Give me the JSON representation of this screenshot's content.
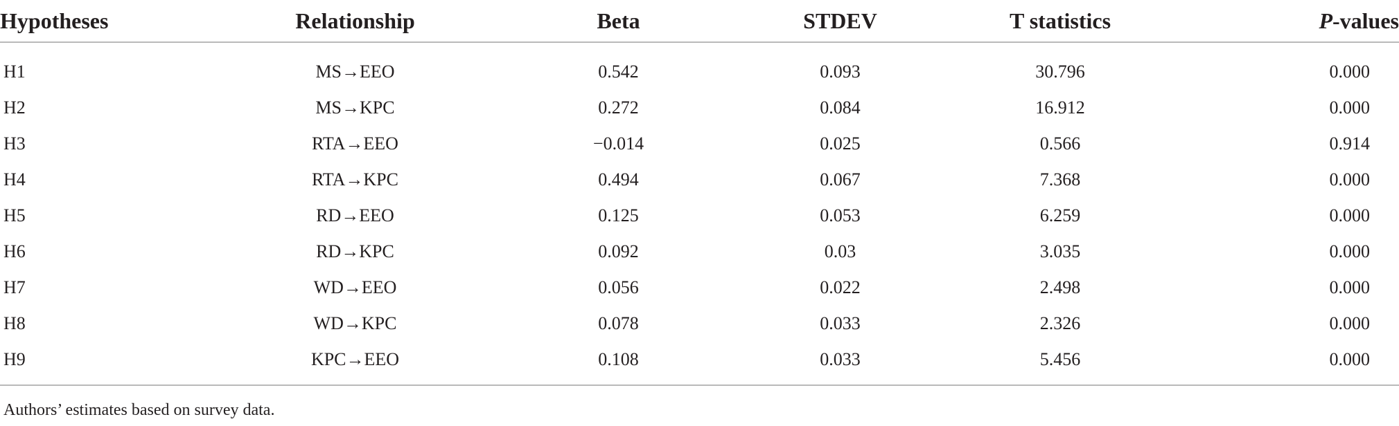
{
  "table": {
    "headers": {
      "hypotheses": "Hypotheses",
      "relationship": "Relationship",
      "beta": "Beta",
      "stdev": "STDEV",
      "t_statistics": "T statistics",
      "p_values_italic": "P",
      "p_values_rest": "-values"
    },
    "rows": [
      {
        "hypothesis": "H1",
        "relationship": "MS→EEO",
        "beta": "0.542",
        "stdev": "0.093",
        "t": "30.796",
        "p": "0.000"
      },
      {
        "hypothesis": "H2",
        "relationship": "MS→KPC",
        "beta": "0.272",
        "stdev": "0.084",
        "t": "16.912",
        "p": "0.000"
      },
      {
        "hypothesis": "H3",
        "relationship": "RTA→EEO",
        "beta": "−0.014",
        "stdev": "0.025",
        "t": "0.566",
        "p": "0.914"
      },
      {
        "hypothesis": "H4",
        "relationship": "RTA→KPC",
        "beta": "0.494",
        "stdev": "0.067",
        "t": "7.368",
        "p": "0.000"
      },
      {
        "hypothesis": "H5",
        "relationship": "RD→EEO",
        "beta": "0.125",
        "stdev": "0.053",
        "t": "6.259",
        "p": "0.000"
      },
      {
        "hypothesis": "H6",
        "relationship": "RD→KPC",
        "beta": "0.092",
        "stdev": "0.03",
        "t": "3.035",
        "p": "0.000"
      },
      {
        "hypothesis": "H7",
        "relationship": "WD→EEO",
        "beta": "0.056",
        "stdev": "0.022",
        "t": "2.498",
        "p": "0.000"
      },
      {
        "hypothesis": "H8",
        "relationship": "WD→KPC",
        "beta": "0.078",
        "stdev": "0.033",
        "t": "2.326",
        "p": "0.000"
      },
      {
        "hypothesis": "H9",
        "relationship": "KPC→EEO",
        "beta": "0.108",
        "stdev": "0.033",
        "t": "5.456",
        "p": "0.000"
      }
    ]
  },
  "footnote": "Authors’ estimates based on survey data."
}
